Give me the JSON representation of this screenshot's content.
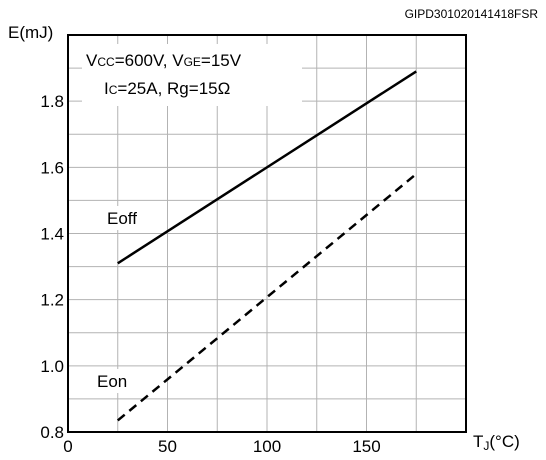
{
  "chart_data": {
    "type": "line",
    "figure_code": "GIPD301020141418FSR",
    "ylabel": "E(mJ)",
    "xlabel": {
      "main": "T",
      "sub": "J",
      "unit": "(°C)"
    },
    "xlim": [
      0,
      200
    ],
    "ylim": [
      0.8,
      2.0
    ],
    "x_ticks": [
      0,
      50,
      100,
      150
    ],
    "y_ticks": [
      0.8,
      1.0,
      1.2,
      1.4,
      1.6,
      1.8
    ],
    "x_grid": [
      25,
      50,
      75,
      100,
      125,
      150,
      175
    ],
    "y_grid": [
      0.8,
      0.9,
      1.0,
      1.1,
      1.2,
      1.3,
      1.4,
      1.5,
      1.6,
      1.7,
      1.8,
      1.9
    ],
    "grid": true,
    "conditions": {
      "line1": {
        "V1": "V",
        "V1sub": "CC",
        "V1val": "=600V, ",
        "V2": "V",
        "V2sub": "GE",
        "V2val": "=15V"
      },
      "line2": {
        "I": "I",
        "Isub": "C",
        "Ival": "=25A, Rg=15Ω"
      }
    },
    "series": [
      {
        "name": "Eoff",
        "style": "solid",
        "x": [
          25,
          175
        ],
        "y": [
          1.31,
          1.89
        ]
      },
      {
        "name": "Eon",
        "style": "dashed",
        "x": [
          25,
          175
        ],
        "y": [
          0.835,
          1.58
        ]
      }
    ]
  }
}
